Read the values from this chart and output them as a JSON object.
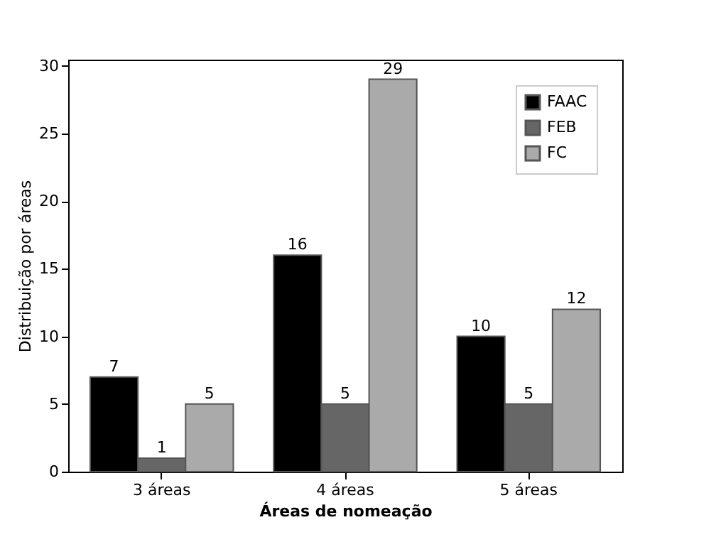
{
  "chart_data": {
    "type": "bar",
    "xlabel": "Áreas de nomeação",
    "ylabel": "Distribuição por áreas",
    "categories": [
      "3 áreas",
      "4 áreas",
      "5 áreas"
    ],
    "series": [
      {
        "name": "FAAC",
        "color": "#000000",
        "values": [
          7,
          16,
          10
        ]
      },
      {
        "name": "FEB",
        "color": "#666666",
        "values": [
          1,
          5,
          5
        ]
      },
      {
        "name": "FC",
        "color": "#aaaaaa",
        "values": [
          5,
          29,
          12
        ]
      }
    ],
    "ylim": [
      0,
      30.45
    ],
    "yticks": [
      0,
      5,
      10,
      15,
      20,
      25,
      30
    ],
    "grid": false,
    "legend": "top right",
    "data_labels": true
  }
}
